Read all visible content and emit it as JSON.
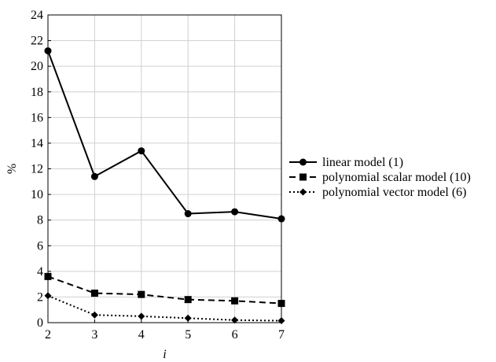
{
  "chart_data": {
    "type": "line",
    "x": [
      2,
      3,
      4,
      5,
      6,
      7
    ],
    "xlabel": "i",
    "ylabel": "%",
    "xlim": [
      2,
      7
    ],
    "ylim": [
      0,
      24
    ],
    "xticks": [
      "2",
      "3",
      "4",
      "5",
      "6",
      "7"
    ],
    "yticks": [
      "0",
      "2",
      "4",
      "6",
      "8",
      "10",
      "12",
      "14",
      "16",
      "18",
      "20",
      "22",
      "24"
    ],
    "grid": true,
    "legend_position": "right",
    "series": [
      {
        "name": "linear model (1)",
        "values": [
          21.2,
          11.4,
          13.4,
          8.5,
          8.65,
          8.1
        ],
        "line_style": "solid",
        "marker": "circle",
        "color": "#000000"
      },
      {
        "name": "polynomial scalar model (10)",
        "values": [
          3.6,
          2.3,
          2.2,
          1.8,
          1.7,
          1.5
        ],
        "line_style": "dashed",
        "marker": "square",
        "color": "#000000"
      },
      {
        "name": "polynomial vector model (6)",
        "values": [
          2.1,
          0.6,
          0.5,
          0.35,
          0.2,
          0.15
        ],
        "line_style": "dotted",
        "marker": "diamond",
        "color": "#000000"
      }
    ]
  }
}
